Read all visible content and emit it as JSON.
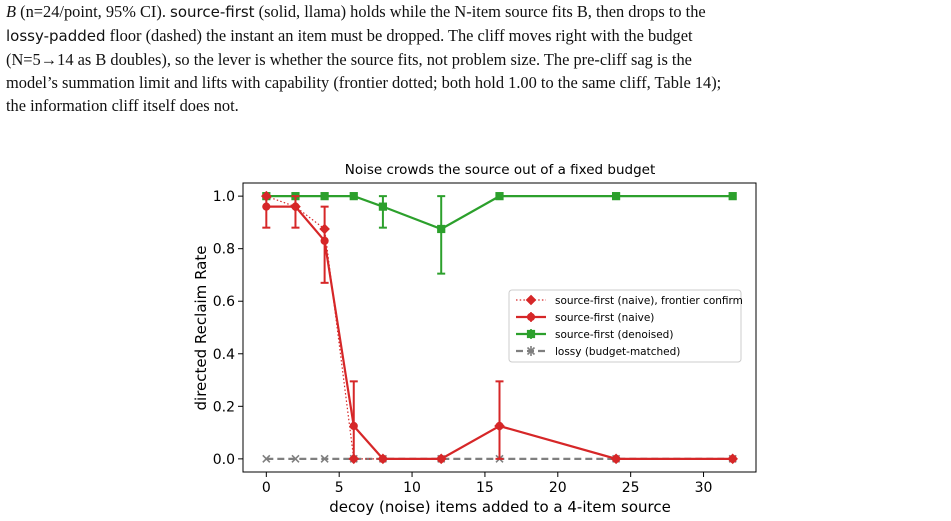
{
  "caption": {
    "line1_a": "B",
    "line1_b": " (n=24/point, 95% CI). ",
    "line1_term1": "source-first",
    "line1_c": " (solid, llama) holds while the N-item source fits B, then drops to the",
    "line2_term2": "lossy-padded",
    "line2_a": " floor (dashed) the instant an item must be dropped.  The cliff moves right with the budget",
    "line3": "(N=5→14 as B doubles), so the lever is whether the source fits, not problem size.  The pre-cliff sag is the",
    "line4": "model’s summation limit and lifts with capability (frontier dotted; both hold 1.00 to the same cliff, Table 14);",
    "line5": "the information cliff itself does not."
  },
  "chart_data": {
    "type": "line",
    "title": "Noise crowds the source out of a fixed budget",
    "xlabel": "decoy (noise) items added to a 4-item source",
    "ylabel": "directed Reclaim Rate",
    "xlim": [
      -1.6,
      33.6
    ],
    "ylim": [
      -0.05,
      1.05
    ],
    "xticks": [
      0,
      5,
      10,
      15,
      20,
      25,
      30
    ],
    "yticks": [
      0.0,
      0.2,
      0.4,
      0.6,
      0.8,
      1.0
    ],
    "xtick_labels": [
      "0",
      "5",
      "10",
      "15",
      "20",
      "25",
      "30"
    ],
    "ytick_labels": [
      "0.0",
      "0.2",
      "0.4",
      "0.6",
      "0.8",
      "1.0"
    ],
    "grid": false,
    "legend_position": "center-right",
    "series": [
      {
        "name": "source-first (naive), frontier confirm",
        "color": "#d62728",
        "style": "dotted",
        "marker": "diamond",
        "x": [
          0,
          2,
          4,
          6,
          8,
          12,
          16,
          24,
          32
        ],
        "y": [
          1.0,
          0.96,
          0.875,
          0.0,
          0.0,
          0.0,
          0.125,
          0.0,
          0.0
        ]
      },
      {
        "name": "source-first (naive)",
        "color": "#d62728",
        "style": "solid",
        "marker": "circle",
        "x": [
          0,
          2,
          4,
          6,
          8,
          12,
          16,
          24,
          32
        ],
        "y": [
          0.96,
          0.96,
          0.83,
          0.125,
          0.0,
          0.0,
          0.125,
          0.0,
          0.0
        ],
        "err_low": [
          0.08,
          0.08,
          0.16,
          0.125,
          0.0,
          0.0,
          0.125,
          0.0,
          0.0
        ],
        "err_high": [
          0.04,
          0.04,
          0.13,
          0.17,
          0.0,
          0.0,
          0.17,
          0.0,
          0.0
        ]
      },
      {
        "name": "source-first (denoised)",
        "color": "#2ca02c",
        "style": "solid",
        "marker": "square",
        "x": [
          0,
          2,
          4,
          6,
          8,
          12,
          16,
          24,
          32
        ],
        "y": [
          1.0,
          1.0,
          1.0,
          1.0,
          0.96,
          0.875,
          1.0,
          1.0,
          1.0
        ],
        "err_low": [
          0,
          0,
          0,
          0,
          0.08,
          0.17,
          0,
          0,
          0
        ],
        "err_high": [
          0,
          0,
          0,
          0,
          0.04,
          0.125,
          0,
          0,
          0
        ]
      },
      {
        "name": "lossy (budget-matched)",
        "color": "#7f7f7f",
        "style": "dashed",
        "marker": "x",
        "x": [
          0,
          2,
          4,
          6,
          8,
          12,
          16,
          24,
          32
        ],
        "y": [
          0,
          0,
          0,
          0,
          0,
          0,
          0,
          0,
          0
        ]
      }
    ]
  }
}
